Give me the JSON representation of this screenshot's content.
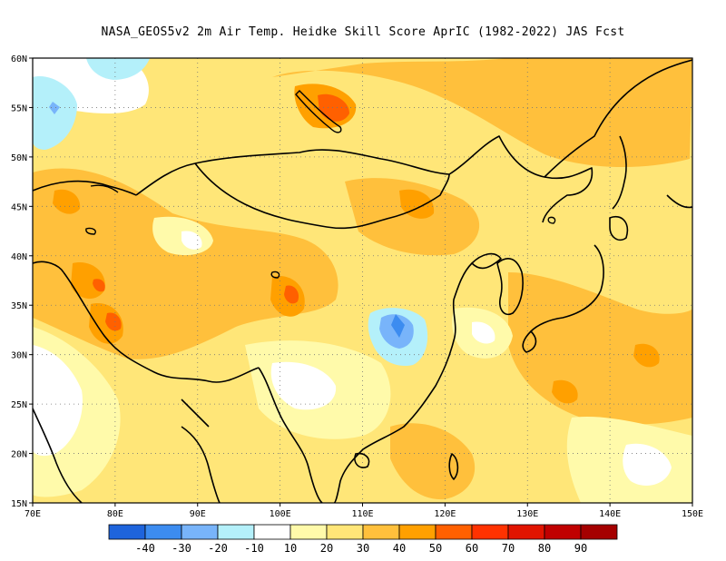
{
  "title": "NASA_GEOS5v2  2m Air Temp. Heidke Skill Score AprIC (1982-2022) JAS Fcst",
  "lat_labels": [
    "15N",
    "20N",
    "25N",
    "30N",
    "35N",
    "40N",
    "45N",
    "50N",
    "55N",
    "60N"
  ],
  "lon_labels": [
    "70E",
    "80E",
    "90E",
    "100E",
    "110E",
    "120E",
    "130E",
    "140E",
    "150E"
  ],
  "colorbar": {
    "colors": [
      "#1e64dc",
      "#3c8cf0",
      "#78b4fa",
      "#b4f0fa",
      "#ffffff",
      "#fffaaa",
      "#ffe678",
      "#ffc03c",
      "#ffa000",
      "#ff6000",
      "#ff3200",
      "#e11400",
      "#c00000",
      "#a50000"
    ],
    "labels": [
      "-40",
      "-30",
      "-20",
      "-10",
      "10",
      "20",
      "30",
      "40",
      "50",
      "60",
      "70",
      "80",
      "90"
    ]
  }
}
